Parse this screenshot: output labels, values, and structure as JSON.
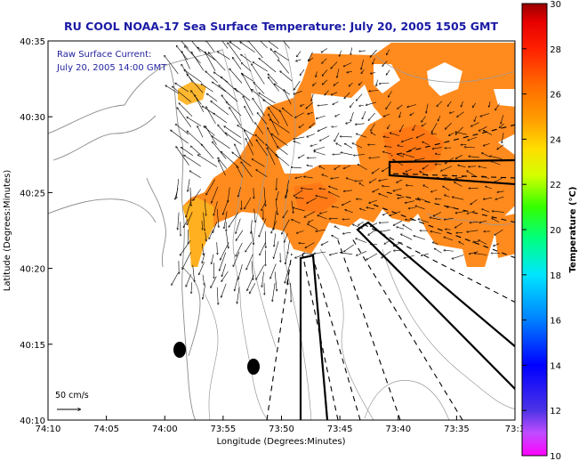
{
  "chart_data": {
    "type": "heatmap",
    "title": "RU COOL  NOAA-17  Sea Surface Temperature:  July 20, 2005 1505 GMT",
    "annotation_lines": [
      "Raw Surface Current:",
      "July 20, 2005 14:00 GMT"
    ],
    "xlabel": "Longitude (Degrees:Minutes)",
    "ylabel": "Latitude (Degrees:Minutes)",
    "x_tick_labels": [
      "74:10",
      "74:05",
      "74:00",
      "73:55",
      "73:50",
      "73:45",
      "73:40",
      "73:35",
      "73:3"
    ],
    "y_tick_labels": [
      "40:10",
      "40:15",
      "40:20",
      "40:25",
      "40:30",
      "40:35"
    ],
    "xlim_minutes": [
      -70,
      -30
    ],
    "ylim_minutes": [
      10,
      35
    ],
    "colorbar": {
      "label": "Temperature (°C)",
      "min": 10,
      "max": 30,
      "tick_labels": [
        "10",
        "12",
        "14",
        "16",
        "18",
        "20",
        "22",
        "24",
        "26",
        "28",
        "30"
      ]
    },
    "scale_label": "50 cm/s",
    "temperature_patches": [
      {
        "lon_min": -47,
        "lat_min": 31,
        "temp": 26.0
      },
      {
        "lon_min": -44,
        "lat_min": 33,
        "temp": 25.5
      },
      {
        "lon_min": -41,
        "lat_min": 31,
        "temp": 25.2
      },
      {
        "lon_min": -38,
        "lat_min": 28,
        "temp": 25.0
      },
      {
        "lon_min": -43,
        "lat_min": 26,
        "temp": 25.4
      },
      {
        "lon_min": -48,
        "lat_min": 25,
        "temp": 25.8
      },
      {
        "lon_min": -53,
        "lat_min": 26,
        "temp": 25.3
      },
      {
        "lon_min": -57,
        "lat_min": 24,
        "temp": 24.5
      },
      {
        "lon_min": -60,
        "lat_min": 22,
        "temp": 23.8
      },
      {
        "lon_min": -60,
        "lat_min": 31,
        "temp": 23.5
      },
      {
        "lon_min": -35,
        "lat_min": 23,
        "temp": 24.8
      },
      {
        "lon_min": -37,
        "lat_min": 33,
        "temp": 25.6
      }
    ]
  },
  "colors": {
    "title": "#1a1aa6",
    "land_contour": "#8c8c8c",
    "sst_warm": "#ff8c1a",
    "sst_mid": "#ff6a00",
    "arrow": "#000000"
  }
}
